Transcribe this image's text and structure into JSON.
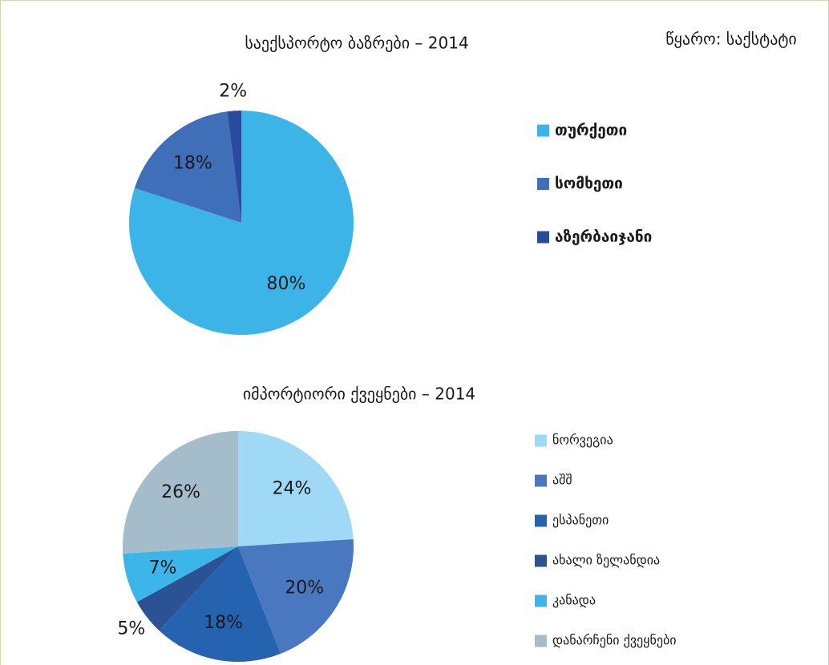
{
  "source": "წყარო: საქსტატი",
  "chart_data": [
    {
      "type": "pie",
      "title": "საექსპორტო ბაზრები – 2014",
      "categories": [
        "თურქეთი",
        "სომხეთი",
        "აზერბაიჯანი"
      ],
      "values": [
        80,
        18,
        2
      ],
      "value_labels": [
        "80%",
        "18%",
        "2%"
      ],
      "colors": [
        "#3db4e8",
        "#3f6fb8",
        "#2a4a9e"
      ]
    },
    {
      "type": "pie",
      "title": "იმპორტიორი ქვეყნები – 2014",
      "categories": [
        "ნორვეგია",
        "აშშ",
        "ესპანეთი",
        "ახალი ზელანდია",
        "კანადა",
        "დანარჩენი ქვეყნები"
      ],
      "values": [
        24,
        20,
        18,
        5,
        7,
        26
      ],
      "value_labels": [
        "24%",
        "20%",
        "18%",
        "5%",
        "7%",
        "26%"
      ],
      "colors": [
        "#9fd9f5",
        "#4a78c0",
        "#2563b0",
        "#2b5394",
        "#3cb5e8",
        "#a5bccb"
      ]
    }
  ]
}
